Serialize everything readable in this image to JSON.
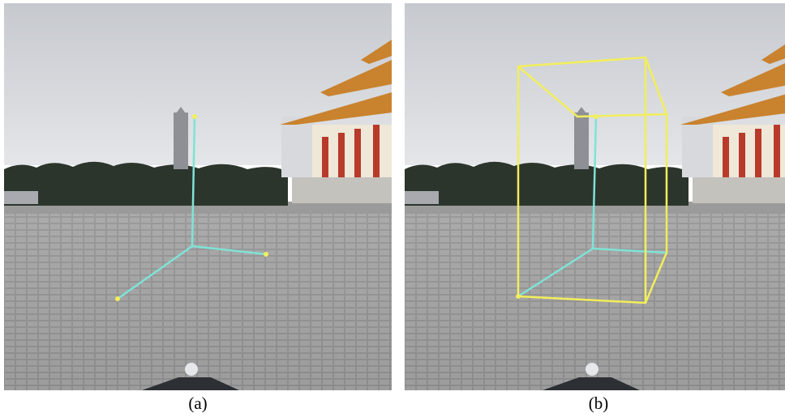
{
  "panels": [
    {
      "id": "a",
      "caption": "(a)"
    },
    {
      "id": "b",
      "caption": "(b)"
    }
  ],
  "colors": {
    "axis": "#7fe3d6",
    "box": "#f2ee5c",
    "sky_top": "#c9ccd1",
    "sky_bottom": "#e3e5e8",
    "ground": "#8c8c8c",
    "trees": "#2a332a",
    "temple_roof": "#c9822e",
    "temple_columns": "#b83a2a"
  }
}
